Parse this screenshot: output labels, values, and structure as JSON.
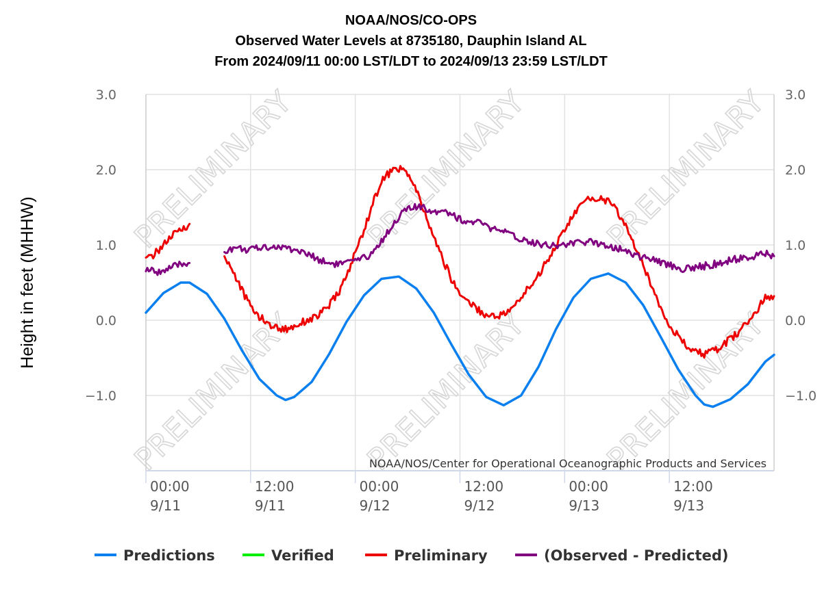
{
  "chart_data": {
    "type": "line",
    "title_lines": [
      "NOAA/NOS/CO-OPS",
      "Observed Water Levels at 8735180, Dauphin Island AL",
      "From 2024/09/11 00:00 LST/LDT to 2024/09/13 23:59 LST/LDT"
    ],
    "ylabel": "Height in feet (MHHW)",
    "ylim": [
      -2.0,
      3.0
    ],
    "y_ticks": [
      "3.0",
      "2.0",
      "1.0",
      "0.0",
      "−1.0"
    ],
    "x_unit": "hours since 2024/09/11 00:00",
    "xlim": [
      0,
      72
    ],
    "x_ticks": [
      {
        "top": "00:00",
        "bottom": "9/11"
      },
      {
        "top": "12:00",
        "bottom": "9/11"
      },
      {
        "top": "00:00",
        "bottom": "9/12"
      },
      {
        "top": "12:00",
        "bottom": "9/12"
      },
      {
        "top": "00:00",
        "bottom": "9/13"
      },
      {
        "top": "12:00",
        "bottom": "9/13"
      }
    ],
    "watermark": "PRELIMINARY",
    "credit": "NOAA/NOS/Center for Operational Oceanographic Products and Services",
    "grid": true,
    "legend_position": "bottom",
    "series": [
      {
        "name": "Predictions",
        "color": "#0a7ff0",
        "points": [
          [
            0,
            0.1
          ],
          [
            2,
            0.36
          ],
          [
            4,
            0.5
          ],
          [
            5,
            0.5
          ],
          [
            7,
            0.35
          ],
          [
            9,
            0.02
          ],
          [
            11,
            -0.4
          ],
          [
            13,
            -0.78
          ],
          [
            15,
            -1.0
          ],
          [
            16,
            -1.06
          ],
          [
            17,
            -1.02
          ],
          [
            19,
            -0.82
          ],
          [
            21,
            -0.45
          ],
          [
            23,
            -0.02
          ],
          [
            25,
            0.33
          ],
          [
            27,
            0.55
          ],
          [
            29,
            0.58
          ],
          [
            31,
            0.42
          ],
          [
            33,
            0.1
          ],
          [
            35,
            -0.32
          ],
          [
            37,
            -0.72
          ],
          [
            39,
            -1.02
          ],
          [
            41,
            -1.13
          ],
          [
            43,
            -1.0
          ],
          [
            45,
            -0.62
          ],
          [
            47,
            -0.12
          ],
          [
            49,
            0.3
          ],
          [
            51,
            0.55
          ],
          [
            53,
            0.62
          ],
          [
            55,
            0.5
          ],
          [
            57,
            0.2
          ],
          [
            59,
            -0.22
          ],
          [
            61,
            -0.65
          ],
          [
            63,
            -1.0
          ],
          [
            64,
            -1.12
          ],
          [
            65,
            -1.15
          ],
          [
            67,
            -1.05
          ],
          [
            69,
            -0.85
          ],
          [
            71,
            -0.55
          ],
          [
            72,
            -0.46
          ]
        ]
      },
      {
        "name": "Verified",
        "color": "#00ee00",
        "points": []
      },
      {
        "name": "Preliminary",
        "color": "#ee0000",
        "segments": [
          [
            [
              0,
              0.8
            ],
            [
              1,
              0.88
            ],
            [
              2,
              1.0
            ],
            [
              3,
              1.12
            ],
            [
              4,
              1.2
            ],
            [
              5,
              1.28
            ]
          ],
          [
            [
              9,
              0.85
            ],
            [
              10,
              0.65
            ],
            [
              11,
              0.4
            ],
            [
              12,
              0.18
            ],
            [
              13,
              0.05
            ],
            [
              14,
              -0.05
            ],
            [
              15,
              -0.1
            ],
            [
              16,
              -0.12
            ],
            [
              17,
              -0.08
            ],
            [
              18,
              -0.02
            ],
            [
              19,
              0.02
            ],
            [
              20,
              0.08
            ],
            [
              21,
              0.2
            ],
            [
              22,
              0.35
            ],
            [
              23,
              0.58
            ],
            [
              24,
              0.9
            ],
            [
              25,
              1.2
            ],
            [
              26,
              1.55
            ],
            [
              27,
              1.85
            ],
            [
              28,
              1.97
            ],
            [
              29,
              2.02
            ],
            [
              30,
              1.95
            ],
            [
              31,
              1.72
            ],
            [
              32,
              1.4
            ],
            [
              33,
              1.1
            ],
            [
              34,
              0.82
            ],
            [
              35,
              0.55
            ],
            [
              36,
              0.35
            ],
            [
              37,
              0.25
            ],
            [
              38,
              0.15
            ],
            [
              39,
              0.06
            ],
            [
              40,
              0.06
            ],
            [
              41,
              0.08
            ],
            [
              42,
              0.15
            ],
            [
              43,
              0.3
            ],
            [
              44,
              0.45
            ],
            [
              45,
              0.6
            ],
            [
              46,
              0.8
            ],
            [
              47,
              1.0
            ],
            [
              48,
              1.2
            ],
            [
              49,
              1.4
            ],
            [
              50,
              1.55
            ],
            [
              51,
              1.62
            ],
            [
              52,
              1.62
            ],
            [
              53,
              1.58
            ],
            [
              54,
              1.45
            ],
            [
              55,
              1.25
            ],
            [
              56,
              1.0
            ],
            [
              57,
              0.72
            ],
            [
              58,
              0.45
            ],
            [
              59,
              0.18
            ],
            [
              60,
              -0.05
            ],
            [
              61,
              -0.22
            ],
            [
              62,
              -0.35
            ],
            [
              63,
              -0.42
            ],
            [
              64,
              -0.45
            ],
            [
              65,
              -0.42
            ],
            [
              66,
              -0.35
            ],
            [
              67,
              -0.25
            ],
            [
              68,
              -0.15
            ],
            [
              69,
              -0.02
            ],
            [
              70,
              0.12
            ],
            [
              71,
              0.3
            ],
            [
              72,
              0.32
            ]
          ]
        ]
      },
      {
        "name": "(Observed - Predicted)",
        "color": "#800080",
        "segments": [
          [
            [
              0,
              0.68
            ],
            [
              1,
              0.64
            ],
            [
              2,
              0.66
            ],
            [
              3,
              0.7
            ],
            [
              4,
              0.74
            ],
            [
              5,
              0.76
            ]
          ],
          [
            [
              9,
              0.92
            ],
            [
              10,
              0.96
            ],
            [
              11,
              0.95
            ],
            [
              12,
              0.93
            ],
            [
              13,
              0.96
            ],
            [
              14,
              0.98
            ],
            [
              15,
              0.97
            ],
            [
              16,
              0.96
            ],
            [
              17,
              0.94
            ],
            [
              18,
              0.9
            ],
            [
              19,
              0.85
            ],
            [
              20,
              0.8
            ],
            [
              21,
              0.76
            ],
            [
              22,
              0.75
            ],
            [
              23,
              0.76
            ],
            [
              24,
              0.78
            ],
            [
              25,
              0.82
            ],
            [
              26,
              0.9
            ],
            [
              27,
              1.05
            ],
            [
              28,
              1.22
            ],
            [
              29,
              1.38
            ],
            [
              30,
              1.48
            ],
            [
              31,
              1.5
            ],
            [
              32,
              1.48
            ],
            [
              33,
              1.45
            ],
            [
              34,
              1.47
            ],
            [
              35,
              1.42
            ],
            [
              36,
              1.34
            ],
            [
              37,
              1.3
            ],
            [
              38,
              1.3
            ],
            [
              39,
              1.25
            ],
            [
              40,
              1.2
            ],
            [
              41,
              1.17
            ],
            [
              42,
              1.12
            ],
            [
              43,
              1.08
            ],
            [
              44,
              1.05
            ],
            [
              45,
              1.02
            ],
            [
              46,
              1.0
            ],
            [
              47,
              1.0
            ],
            [
              48,
              1.0
            ],
            [
              49,
              1.02
            ],
            [
              50,
              1.03
            ],
            [
              51,
              1.04
            ],
            [
              52,
              1.02
            ],
            [
              53,
              1.0
            ],
            [
              54,
              0.96
            ],
            [
              55,
              0.92
            ],
            [
              56,
              0.88
            ],
            [
              57,
              0.84
            ],
            [
              58,
              0.8
            ],
            [
              59,
              0.77
            ],
            [
              60,
              0.74
            ],
            [
              61,
              0.7
            ],
            [
              62,
              0.68
            ],
            [
              63,
              0.7
            ],
            [
              64,
              0.72
            ],
            [
              65,
              0.74
            ],
            [
              66,
              0.76
            ],
            [
              67,
              0.79
            ],
            [
              68,
              0.82
            ],
            [
              69,
              0.84
            ],
            [
              70,
              0.85
            ],
            [
              71,
              0.88
            ],
            [
              72,
              0.85
            ]
          ]
        ]
      }
    ]
  }
}
